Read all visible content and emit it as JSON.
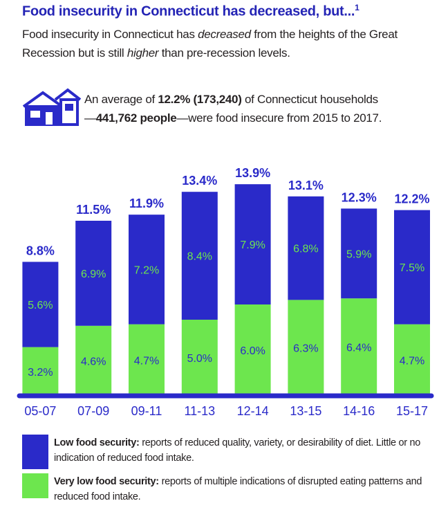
{
  "chart_data": {
    "type": "stacked-bar",
    "title": "Food insecurity in Connecticut has decreased, but...",
    "title_note": "1",
    "intro": [
      "Food insecurity in Connecticut has ",
      "decreased",
      " from the heights of the Great Recession but is still ",
      "higher",
      " than pre-recession levels."
    ],
    "stat": [
      "An average of ",
      "12.2% (173,240)",
      " of Connecticut households",
      "—",
      "441,762 people",
      "—were food insecure from 2015 to 2017."
    ],
    "categories": [
      "05-07",
      "07-09",
      "09-11",
      "11-13",
      "12-14",
      "13-15",
      "14-16",
      "15-17"
    ],
    "series": [
      {
        "name": "Low food security:",
        "description": "reports of reduced quality, variety, or desirability of diet. Little or no indication of reduced food intake.",
        "color": "#2a2ac9",
        "values": [
          5.6,
          6.9,
          7.2,
          8.4,
          7.9,
          6.8,
          5.9,
          7.5
        ],
        "value_labels": [
          "5.6%",
          "6.9%",
          "7.2%",
          "8.4%",
          "7.9%",
          "6.8%",
          "5.9%",
          "7.5%"
        ]
      },
      {
        "name": "Very low food security:",
        "description": "reports of multiple indications of disrupted eating patterns and reduced food intake.",
        "color": "#6de64e",
        "values": [
          3.2,
          4.6,
          4.7,
          5.0,
          6.0,
          6.3,
          6.4,
          4.7
        ],
        "value_labels": [
          "3.2%",
          "4.6%",
          "4.7%",
          "5.0%",
          "6.0%",
          "6.3%",
          "6.4%",
          "4.7%"
        ]
      }
    ],
    "totals": {
      "values": [
        8.8,
        11.5,
        11.9,
        13.4,
        13.9,
        13.1,
        12.3,
        12.2
      ],
      "value_labels": [
        "8.8%",
        "11.5%",
        "11.9%",
        "13.4%",
        "13.9%",
        "13.1%",
        "12.3%",
        "12.2%"
      ]
    }
  }
}
